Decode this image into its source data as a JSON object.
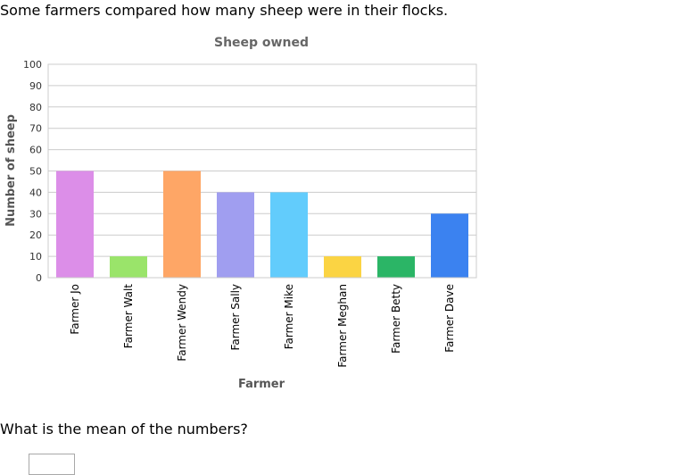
{
  "intro_text": "Some farmers compared how many sheep were in their flocks.",
  "question_text": "What is the mean of the numbers?",
  "answer": {
    "value": "",
    "placeholder": ""
  },
  "chart_data": {
    "type": "bar",
    "title": "Sheep owned",
    "xlabel": "Farmer",
    "ylabel": "Number of sheep",
    "ylim": [
      0,
      100
    ],
    "yticks": [
      0,
      10,
      20,
      30,
      40,
      50,
      60,
      70,
      80,
      90,
      100
    ],
    "grid": true,
    "categories": [
      "Farmer Jo",
      "Farmer Walt",
      "Farmer Wendy",
      "Farmer Sally",
      "Farmer Mike",
      "Farmer Meghan",
      "Farmer Betty",
      "Farmer Dave"
    ],
    "values": [
      50,
      10,
      50,
      40,
      40,
      10,
      10,
      30
    ],
    "colors": [
      "#dc8ee8",
      "#9ae46a",
      "#fea666",
      "#a09ef0",
      "#62ccfc",
      "#fbd443",
      "#2bb566",
      "#3b82f0"
    ]
  }
}
